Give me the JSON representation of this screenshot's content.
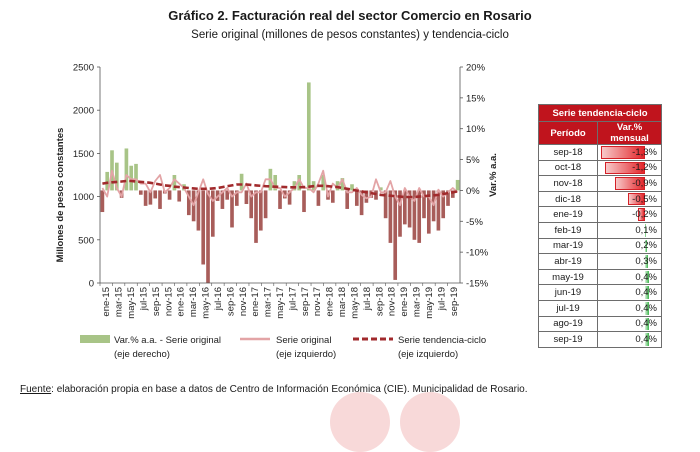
{
  "title": "Gráfico 2. Facturación real del sector Comercio en Rosario",
  "subtitle": "Serie original (millones de pesos constantes) y tendencia-ciclo",
  "source_label": "Fuente",
  "source_text": ": elaboración propia en base a datos de Centro de Información Económica (CIE). Municipalidad de Rosario.",
  "colors": {
    "bars": "#a8c487",
    "bars_neg": "#a85d5a",
    "original": "#e3a4a6",
    "trend": "#a12a2c",
    "table_header": "#c0141d"
  },
  "chart_data": {
    "type": "bar",
    "xlabel": "",
    "ylabel_left": "Millones de pesos constantes",
    "ylabel_right": "Var.% a.a.",
    "ylim_left": [
      0,
      2500
    ],
    "ylim_right": [
      -15,
      20
    ],
    "left_ticks": [
      "0",
      "500",
      "1000",
      "1500",
      "2000",
      "2500"
    ],
    "right_ticks": [
      "-15%",
      "-10%",
      "-5%",
      "0%",
      "5%",
      "10%",
      "15%",
      "20%"
    ],
    "x_tick_labels": [
      "ene-15",
      "mar-15",
      "may-15",
      "jul-15",
      "sep-15",
      "nov-15",
      "ene-16",
      "mar-16",
      "may-16",
      "jul-16",
      "sep-16",
      "nov-16",
      "ene-17",
      "mar-17",
      "may-17",
      "jul-17",
      "sep-17",
      "nov-17",
      "ene-18",
      "mar-18",
      "may-18",
      "jul-18",
      "sep-18",
      "nov-18",
      "ene-19",
      "mar-19",
      "may-19",
      "jul-19",
      "sep-19"
    ],
    "grid": false,
    "legend_position": "bottom",
    "series": [
      {
        "name": "Var.% a.a. - Serie original",
        "name2": "(eje derecho)",
        "type": "bar",
        "axis": "right",
        "values": [
          -3.5,
          3,
          6.5,
          4.5,
          -1.2,
          6.8,
          4,
          4.3,
          -0.7,
          -2.5,
          -2.3,
          -1.3,
          -3,
          -0.5,
          -1.5,
          2.5,
          -1.8,
          1,
          -4,
          -5,
          -6.5,
          -12,
          -15,
          -7.5,
          -1.7,
          -3,
          -1.5,
          -6,
          -2.5,
          2.7,
          -2.2,
          -4.5,
          -8.5,
          -6.5,
          -4.5,
          3.5,
          2.5,
          -3,
          -1.3,
          -2.3,
          1.5,
          2.5,
          -3.5,
          17.5,
          1.5,
          -2.5,
          2.5,
          -1.5,
          -2,
          1.5,
          2,
          -3,
          1,
          -2.5,
          -4,
          -2,
          -1.2,
          -1.5,
          0.5,
          -4.5,
          -8.5,
          -14.5,
          -7.5,
          -5.5,
          -6,
          -8,
          -8.5,
          -4.5,
          -7,
          -5,
          -6.5,
          -4.5,
          -2.5,
          -1.2,
          1.7
        ]
      },
      {
        "name": "Serie original",
        "name2": "(eje izquierdo)",
        "type": "line",
        "axis": "left",
        "values": [
          1100,
          1000,
          1300,
          1100,
          1000,
          1250,
          1200,
          1200,
          1150,
          1150,
          1050,
          1180,
          1250,
          1050,
          1100,
          1200,
          1150,
          1100,
          1000,
          900,
          1050,
          1200,
          1030,
          950,
          1000,
          1050,
          1100,
          1000,
          1050,
          1050,
          1150,
          1000,
          1050,
          1050,
          1200,
          1200,
          1100,
          1100,
          1000,
          1050,
          1100,
          1200,
          1100,
          1100,
          1050,
          1150,
          1300,
          1000,
          1150,
          1100,
          1200,
          1050,
          1050,
          1100,
          1020,
          980,
          1000,
          1200,
          1050,
          1050,
          1180,
          1000,
          900,
          1100,
          1000,
          950,
          1100,
          1000,
          1000,
          900,
          1080,
          1000,
          1050,
          1100,
          1050
        ]
      },
      {
        "name": "Serie tendencia-ciclo",
        "name2": "(eje izquierdo)",
        "type": "dashed-line",
        "axis": "left",
        "values": [
          1150,
          1160,
          1165,
          1170,
          1175,
          1180,
          1180,
          1175,
          1170,
          1165,
          1160,
          1150,
          1140,
          1130,
          1125,
          1115,
          1110,
          1105,
          1100,
          1095,
          1090,
          1090,
          1090,
          1095,
          1100,
          1110,
          1120,
          1130,
          1140,
          1140,
          1140,
          1135,
          1130,
          1125,
          1120,
          1118,
          1115,
          1112,
          1110,
          1108,
          1108,
          1108,
          1110,
          1115,
          1120,
          1125,
          1125,
          1120,
          1115,
          1110,
          1100,
          1090,
          1080,
          1070,
          1060,
          1050,
          1040,
          1030,
          1020,
          1015,
          1010,
          1005,
          1000,
          995,
          995,
          995,
          1000,
          1005,
          1010,
          1015,
          1020,
          1030,
          1040,
          1050,
          1060
        ]
      }
    ]
  },
  "table": {
    "title": "Serie tendencia-ciclo",
    "col_period": "Período",
    "col_value": "Var.% mensual",
    "rows": [
      {
        "period": "sep-18",
        "value": "-1,3%",
        "num": -1.3
      },
      {
        "period": "oct-18",
        "value": "-1,2%",
        "num": -1.2
      },
      {
        "period": "nov-18",
        "value": "-0,9%",
        "num": -0.9
      },
      {
        "period": "dic-18",
        "value": "-0,5%",
        "num": -0.5
      },
      {
        "period": "ene-19",
        "value": "-0,2%",
        "num": -0.2
      },
      {
        "period": "feb-19",
        "value": "0,1%",
        "num": 0.1
      },
      {
        "period": "mar-19",
        "value": "0,2%",
        "num": 0.2
      },
      {
        "period": "abr-19",
        "value": "0,3%",
        "num": 0.3
      },
      {
        "period": "may-19",
        "value": "0,4%",
        "num": 0.4
      },
      {
        "period": "jun-19",
        "value": "0,4%",
        "num": 0.4
      },
      {
        "period": "jul-19",
        "value": "0,4%",
        "num": 0.4
      },
      {
        "period": "ago-19",
        "value": "0,4%",
        "num": 0.4
      },
      {
        "period": "sep-19",
        "value": "0,4%",
        "num": 0.4
      }
    ]
  }
}
